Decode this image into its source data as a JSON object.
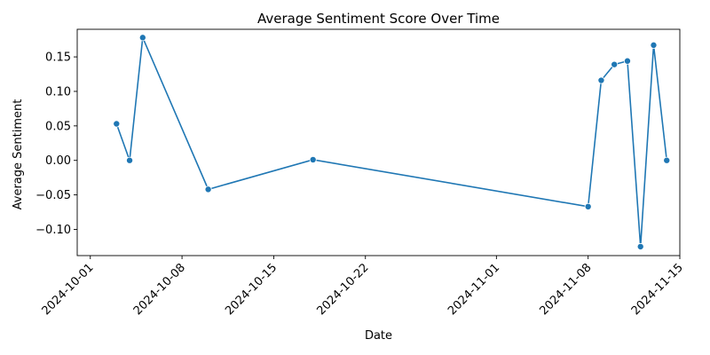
{
  "chart_data": {
    "type": "line",
    "title": "Average Sentiment Score Over Time",
    "xlabel": "Date",
    "ylabel": "Average Sentiment",
    "x_tick_labels": [
      "2024-10-01",
      "2024-10-08",
      "2024-10-15",
      "2024-10-22",
      "2024-11-01",
      "2024-11-08",
      "2024-11-15"
    ],
    "y_tick_values": [
      -0.1,
      -0.05,
      0.0,
      0.05,
      0.1,
      0.15
    ],
    "y_tick_labels": [
      "−0.10",
      "−0.05",
      "0.00",
      "0.05",
      "0.10",
      "0.15"
    ],
    "xlim": [
      "2024-09-30",
      "2024-11-15"
    ],
    "ylim": [
      -0.138,
      0.19
    ],
    "grid": false,
    "marker": "circle",
    "color": "#1f77b4",
    "series": [
      {
        "x": [
          "2024-10-03",
          "2024-10-04",
          "2024-10-05",
          "2024-10-10",
          "2024-10-18",
          "2024-11-08",
          "2024-11-09",
          "2024-11-10",
          "2024-11-11",
          "2024-11-12",
          "2024-11-13",
          "2024-11-14"
        ],
        "y": [
          0.053,
          0.0,
          0.178,
          -0.042,
          0.001,
          -0.067,
          0.116,
          0.139,
          0.144,
          -0.125,
          0.167,
          0.0
        ]
      }
    ]
  }
}
